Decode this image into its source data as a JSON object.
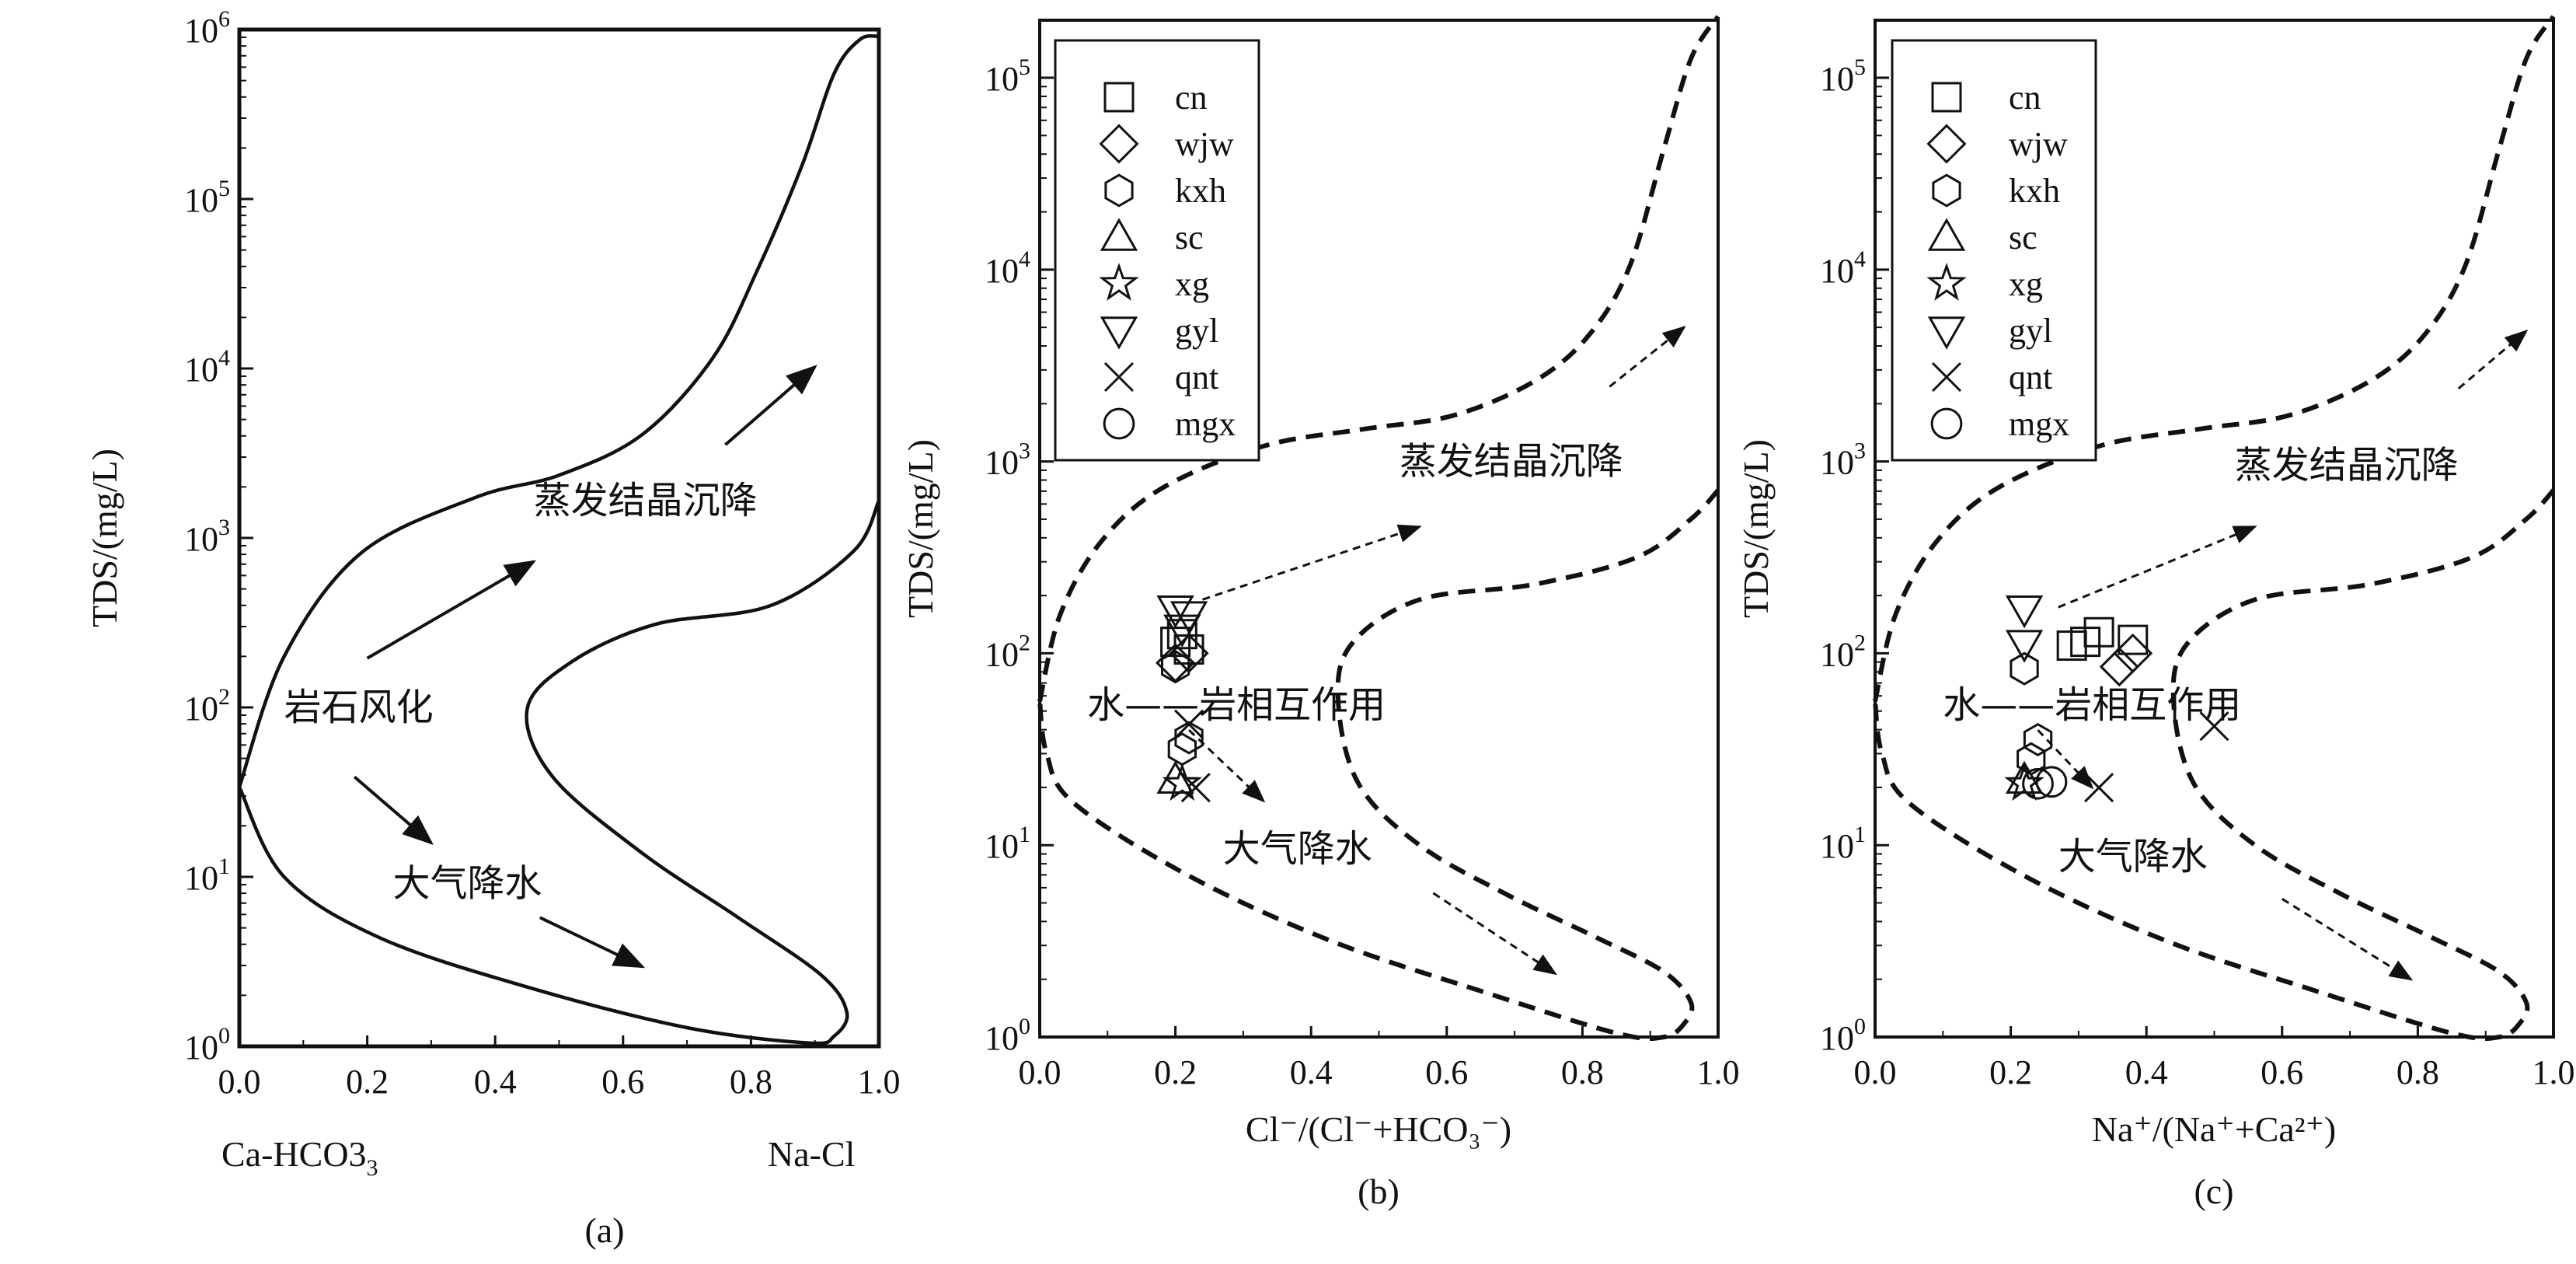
{
  "colors": {
    "ink": "#111111",
    "background": "#ffffff"
  },
  "chart_data": [
    {
      "id": "a",
      "type": "line",
      "panel_label": "(a)",
      "ylabel": "TDS/(mg/L)",
      "xlabel": "",
      "x_end_labels": {
        "left": "Ca-HCO3",
        "left_sub": "3",
        "right": "Na-Cl"
      },
      "xlim": [
        0,
        1
      ],
      "ylim_log10": [
        0,
        6
      ],
      "xticks": [
        0.0,
        0.2,
        0.4,
        0.6,
        0.8,
        1.0
      ],
      "xtick_labels": [
        "0.0",
        "0.2",
        "0.4",
        "0.6",
        "0.8",
        "1.0"
      ],
      "ytick_exponents": [
        0,
        1,
        2,
        3,
        4,
        5,
        6
      ],
      "annotations": [
        {
          "text": "岩石风化",
          "x": 0.07,
          "log_tds": 2.0
        },
        {
          "text": "蒸发结晶沉降",
          "x": 0.46,
          "log_tds": 3.22
        },
        {
          "text": "大气降水",
          "x": 0.24,
          "log_tds": 0.96
        }
      ],
      "arrows": [
        {
          "from": [
            0.2,
            2.29
          ],
          "to": [
            0.46,
            2.86
          ]
        },
        {
          "from": [
            0.76,
            3.55
          ],
          "to": [
            0.9,
            4.01
          ]
        },
        {
          "from": [
            0.18,
            1.59
          ],
          "to": [
            0.3,
            1.2
          ]
        },
        {
          "from": [
            0.47,
            0.76
          ],
          "to": [
            0.63,
            0.47
          ]
        }
      ],
      "boundary_outer": [
        [
          0.0,
          1.53
        ],
        [
          0.07,
          2.3
        ],
        [
          0.19,
          2.91
        ],
        [
          0.37,
          3.24
        ],
        [
          0.5,
          3.37
        ],
        [
          0.63,
          3.61
        ],
        [
          0.74,
          4.06
        ],
        [
          0.81,
          4.58
        ],
        [
          0.88,
          5.2
        ],
        [
          0.93,
          5.74
        ],
        [
          0.97,
          5.94
        ],
        [
          1.0,
          5.96
        ]
      ],
      "boundary_inner": [
        [
          1.0,
          3.22
        ],
        [
          0.96,
          2.92
        ],
        [
          0.83,
          2.6
        ],
        [
          0.65,
          2.49
        ],
        [
          0.52,
          2.27
        ],
        [
          0.45,
          1.99
        ],
        [
          0.49,
          1.59
        ],
        [
          0.63,
          1.14
        ],
        [
          0.78,
          0.76
        ],
        [
          0.91,
          0.42
        ],
        [
          0.95,
          0.2
        ],
        [
          0.93,
          0.06
        ],
        [
          0.89,
          0.02
        ],
        [
          0.7,
          0.11
        ],
        [
          0.45,
          0.35
        ],
        [
          0.22,
          0.64
        ],
        [
          0.07,
          1.0
        ],
        [
          0.0,
          1.53
        ]
      ]
    },
    {
      "id": "b",
      "type": "scatter",
      "panel_label": "(b)",
      "ylabel": "TDS/(mg/L)",
      "xlabel": "Cl⁻/(Cl⁻+HCO₃⁻)",
      "xlim": [
        0,
        1
      ],
      "ylim_log10": [
        0,
        5.3
      ],
      "xticks": [
        0.0,
        0.2,
        0.4,
        0.6,
        0.8,
        1.0
      ],
      "xtick_labels": [
        "0.0",
        "0.2",
        "0.4",
        "0.6",
        "0.8",
        "1.0"
      ],
      "ytick_exponents": [
        0,
        1,
        2,
        3,
        4,
        5
      ],
      "legend": {
        "position": "top-left",
        "entries": [
          {
            "symbol": "square",
            "label": "cn"
          },
          {
            "symbol": "diamond",
            "label": "wjw"
          },
          {
            "symbol": "hexagon",
            "label": "kxh"
          },
          {
            "symbol": "triangle-up",
            "label": "sc"
          },
          {
            "symbol": "star",
            "label": "xg"
          },
          {
            "symbol": "triangle-down",
            "label": "gyl"
          },
          {
            "symbol": "x",
            "label": "qnt"
          },
          {
            "symbol": "circle",
            "label": "mgx"
          }
        ]
      },
      "annotations": [
        {
          "text": "蒸发结晶沉降",
          "x": 0.53,
          "log_tds": 3.0
        },
        {
          "text": "水——岩相互作用",
          "x": 0.07,
          "log_tds": 1.73
        },
        {
          "text": "大气降水",
          "x": 0.27,
          "log_tds": 0.98
        }
      ],
      "arrows": [
        {
          "from": [
            0.24,
            2.28
          ],
          "to": [
            0.56,
            2.66
          ]
        },
        {
          "from": [
            0.84,
            3.39
          ],
          "to": [
            0.95,
            3.7
          ]
        },
        {
          "from": [
            0.22,
            1.6
          ],
          "to": [
            0.33,
            1.23
          ]
        },
        {
          "from": [
            0.58,
            0.75
          ],
          "to": [
            0.76,
            0.33
          ]
        }
      ],
      "boundary_outer": [
        [
          0.0,
          1.75
        ],
        [
          0.03,
          2.2
        ],
        [
          0.09,
          2.58
        ],
        [
          0.18,
          2.86
        ],
        [
          0.33,
          3.08
        ],
        [
          0.48,
          3.17
        ],
        [
          0.61,
          3.24
        ],
        [
          0.73,
          3.42
        ],
        [
          0.81,
          3.66
        ],
        [
          0.87,
          4.02
        ],
        [
          0.92,
          4.63
        ],
        [
          0.96,
          5.1
        ],
        [
          1.0,
          5.32
        ]
      ],
      "boundary_inner": [
        [
          1.0,
          2.85
        ],
        [
          0.96,
          2.7
        ],
        [
          0.88,
          2.5
        ],
        [
          0.73,
          2.36
        ],
        [
          0.56,
          2.28
        ],
        [
          0.46,
          2.05
        ],
        [
          0.44,
          1.75
        ],
        [
          0.47,
          1.32
        ],
        [
          0.56,
          1.0
        ],
        [
          0.69,
          0.74
        ],
        [
          0.82,
          0.52
        ],
        [
          0.92,
          0.34
        ],
        [
          0.96,
          0.18
        ],
        [
          0.95,
          0.07
        ],
        [
          0.92,
          0.0
        ],
        [
          0.85,
          0.02
        ],
        [
          0.65,
          0.24
        ],
        [
          0.43,
          0.5
        ],
        [
          0.22,
          0.84
        ],
        [
          0.05,
          1.22
        ],
        [
          0.01,
          1.48
        ],
        [
          0.0,
          1.75
        ]
      ],
      "series": [
        {
          "name": "cn",
          "symbol": "square",
          "points": [
            [
              0.2,
              2.06
            ],
            [
              0.21,
              2.1
            ],
            [
              0.22,
              2.02
            ]
          ]
        },
        {
          "name": "wjw",
          "symbol": "diamond",
          "points": [
            [
              0.22,
              2.0
            ],
            [
              0.2,
              1.95
            ]
          ]
        },
        {
          "name": "kxh",
          "symbol": "hexagon",
          "points": [
            [
              0.2,
              1.93
            ],
            [
              0.22,
              1.56
            ],
            [
              0.21,
              1.5
            ]
          ]
        },
        {
          "name": "sc",
          "symbol": "triangle-up",
          "points": [
            [
              0.2,
              1.34
            ]
          ]
        },
        {
          "name": "xg",
          "symbol": "star",
          "points": [
            [
              0.21,
              1.32
            ]
          ]
        },
        {
          "name": "gyl",
          "symbol": "triangle-down",
          "points": [
            [
              0.2,
              2.23
            ],
            [
              0.22,
              2.2
            ],
            [
              0.21,
              2.13
            ]
          ]
        },
        {
          "name": "qnt",
          "symbol": "x",
          "points": [
            [
              0.22,
              1.63
            ],
            [
              0.23,
              1.3
            ]
          ]
        },
        {
          "name": "mgx",
          "symbol": "circle",
          "points": []
        }
      ]
    },
    {
      "id": "c",
      "type": "scatter",
      "panel_label": "(c)",
      "ylabel": "TDS/(mg/L)",
      "xlabel": "Na⁺/(Na⁺+Ca²⁺)",
      "xlim": [
        0,
        1
      ],
      "ylim_log10": [
        0,
        5.3
      ],
      "xticks": [
        0.0,
        0.2,
        0.4,
        0.6,
        0.8,
        1.0
      ],
      "xtick_labels": [
        "0.0",
        "0.2",
        "0.4",
        "0.6",
        "0.8",
        "1.0"
      ],
      "ytick_exponents": [
        0,
        1,
        2,
        3,
        4,
        5
      ],
      "legend": {
        "position": "top-left",
        "entries": [
          {
            "symbol": "square",
            "label": "cn"
          },
          {
            "symbol": "diamond",
            "label": "wjw"
          },
          {
            "symbol": "hexagon",
            "label": "kxh"
          },
          {
            "symbol": "triangle-up",
            "label": "sc"
          },
          {
            "symbol": "star",
            "label": "xg"
          },
          {
            "symbol": "triangle-down",
            "label": "gyl"
          },
          {
            "symbol": "x",
            "label": "qnt"
          },
          {
            "symbol": "circle",
            "label": "mgx"
          }
        ]
      },
      "annotations": [
        {
          "text": "蒸发结晶沉降",
          "x": 0.53,
          "log_tds": 2.98
        },
        {
          "text": "水——岩相互作用",
          "x": 0.1,
          "log_tds": 1.73
        },
        {
          "text": "大气降水",
          "x": 0.27,
          "log_tds": 0.94
        }
      ],
      "arrows": [
        {
          "from": [
            0.27,
            2.24
          ],
          "to": [
            0.56,
            2.66
          ]
        },
        {
          "from": [
            0.86,
            3.38
          ],
          "to": [
            0.96,
            3.68
          ]
        },
        {
          "from": [
            0.24,
            1.6
          ],
          "to": [
            0.32,
            1.3
          ]
        },
        {
          "from": [
            0.6,
            0.72
          ],
          "to": [
            0.79,
            0.3
          ]
        }
      ],
      "boundary_outer": [
        [
          0.0,
          1.75
        ],
        [
          0.03,
          2.2
        ],
        [
          0.09,
          2.58
        ],
        [
          0.18,
          2.86
        ],
        [
          0.33,
          3.08
        ],
        [
          0.48,
          3.17
        ],
        [
          0.61,
          3.24
        ],
        [
          0.73,
          3.42
        ],
        [
          0.81,
          3.66
        ],
        [
          0.87,
          4.02
        ],
        [
          0.92,
          4.63
        ],
        [
          0.96,
          5.1
        ],
        [
          1.0,
          5.32
        ]
      ],
      "boundary_inner": [
        [
          1.0,
          2.85
        ],
        [
          0.96,
          2.7
        ],
        [
          0.88,
          2.5
        ],
        [
          0.73,
          2.36
        ],
        [
          0.56,
          2.28
        ],
        [
          0.46,
          2.05
        ],
        [
          0.44,
          1.75
        ],
        [
          0.47,
          1.32
        ],
        [
          0.56,
          1.0
        ],
        [
          0.69,
          0.74
        ],
        [
          0.82,
          0.52
        ],
        [
          0.92,
          0.34
        ],
        [
          0.96,
          0.18
        ],
        [
          0.95,
          0.07
        ],
        [
          0.92,
          0.0
        ],
        [
          0.85,
          0.02
        ],
        [
          0.65,
          0.24
        ],
        [
          0.43,
          0.5
        ],
        [
          0.22,
          0.84
        ],
        [
          0.05,
          1.22
        ],
        [
          0.01,
          1.48
        ],
        [
          0.0,
          1.75
        ]
      ],
      "series": [
        {
          "name": "cn",
          "symbol": "square",
          "points": [
            [
              0.29,
              2.04
            ],
            [
              0.31,
              2.06
            ],
            [
              0.33,
              2.11
            ],
            [
              0.38,
              2.07
            ]
          ]
        },
        {
          "name": "wjw",
          "symbol": "diamond",
          "points": [
            [
              0.36,
              1.93
            ],
            [
              0.38,
              2.0
            ]
          ]
        },
        {
          "name": "kxh",
          "symbol": "hexagon",
          "points": [
            [
              0.22,
              1.92
            ],
            [
              0.24,
              1.55
            ],
            [
              0.23,
              1.45
            ]
          ]
        },
        {
          "name": "sc",
          "symbol": "triangle-up",
          "points": [
            [
              0.22,
              1.34
            ]
          ]
        },
        {
          "name": "xg",
          "symbol": "star",
          "points": [
            [
              0.22,
              1.32
            ]
          ]
        },
        {
          "name": "gyl",
          "symbol": "triangle-down",
          "points": [
            [
              0.22,
              2.23
            ],
            [
              0.22,
              2.05
            ]
          ]
        },
        {
          "name": "qnt",
          "symbol": "x",
          "points": [
            [
              0.33,
              1.3
            ],
            [
              0.5,
              1.62
            ]
          ]
        },
        {
          "name": "mgx",
          "symbol": "circle",
          "points": [
            [
              0.24,
              1.32
            ],
            [
              0.26,
              1.33
            ]
          ]
        }
      ]
    }
  ]
}
